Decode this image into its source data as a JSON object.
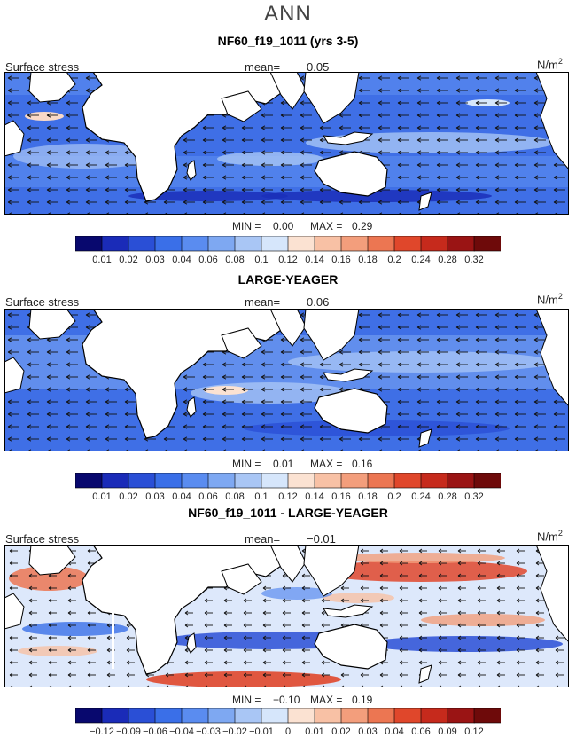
{
  "figure": {
    "title": "ANN"
  },
  "chart_data": [
    {
      "type": "heatmap",
      "title": "NF60_f19_1011 (yrs 3-5)",
      "field_label": "Surface stress",
      "mean_label": "mean=",
      "mean_value": "0.05",
      "units_base": "N/m",
      "units_exp": "2",
      "min_label": "MIN =",
      "min_value": "0.00",
      "max_label": "MAX =",
      "max_value": "0.29",
      "colorbar": {
        "ticks": [
          "0.01",
          "0.02",
          "0.03",
          "0.04",
          "0.06",
          "0.08",
          "0.1",
          "0.12",
          "0.14",
          "0.16",
          "0.18",
          "0.2",
          "0.24",
          "0.28",
          "0.32"
        ],
        "colors": [
          "#08086e",
          "#1a2bb8",
          "#2a4fd6",
          "#3a6fe8",
          "#5a8cf0",
          "#7ea8f2",
          "#a9c6f5",
          "#d6e6fb",
          "#fbe2d2",
          "#f8c1a5",
          "#f39e7c",
          "#ec7652",
          "#e0472b",
          "#c62a1c",
          "#9a1414",
          "#6e0a0a"
        ]
      }
    },
    {
      "type": "heatmap",
      "title": "LARGE-YEAGER",
      "field_label": "Surface stress",
      "mean_label": "mean=",
      "mean_value": "0.06",
      "units_base": "N/m",
      "units_exp": "2",
      "min_label": "MIN =",
      "min_value": "0.01",
      "max_label": "MAX =",
      "max_value": "0.16",
      "colorbar": {
        "ticks": [
          "0.01",
          "0.02",
          "0.03",
          "0.04",
          "0.06",
          "0.08",
          "0.1",
          "0.12",
          "0.14",
          "0.16",
          "0.18",
          "0.2",
          "0.24",
          "0.28",
          "0.32"
        ],
        "colors": [
          "#08086e",
          "#1a2bb8",
          "#2a4fd6",
          "#3a6fe8",
          "#5a8cf0",
          "#7ea8f2",
          "#a9c6f5",
          "#d6e6fb",
          "#fbe2d2",
          "#f8c1a5",
          "#f39e7c",
          "#ec7652",
          "#e0472b",
          "#c62a1c",
          "#9a1414",
          "#6e0a0a"
        ]
      }
    },
    {
      "type": "heatmap",
      "title": "NF60_f19_1011 - LARGE-YEAGER",
      "field_label": "Surface stress",
      "mean_label": "mean=",
      "mean_value": "−0.01",
      "units_base": "N/m",
      "units_exp": "2",
      "min_label": "MIN =",
      "min_value": "−0.10",
      "max_label": "MAX =",
      "max_value": "0.19",
      "colorbar": {
        "ticks": [
          "−0.12",
          "−0.09",
          "−0.06",
          "−0.04",
          "−0.03",
          "−0.02",
          "−0.01",
          "0",
          "0.01",
          "0.02",
          "0.03",
          "0.04",
          "0.06",
          "0.09",
          "0.12"
        ],
        "colors": [
          "#08086e",
          "#1a2bb8",
          "#2a4fd6",
          "#3a6fe8",
          "#5a8cf0",
          "#7ea8f2",
          "#a9c6f5",
          "#d6e6fb",
          "#fbe2d2",
          "#f8c1a5",
          "#f39e7c",
          "#ec7652",
          "#e0472b",
          "#c62a1c",
          "#9a1414",
          "#6e0a0a"
        ]
      }
    }
  ]
}
